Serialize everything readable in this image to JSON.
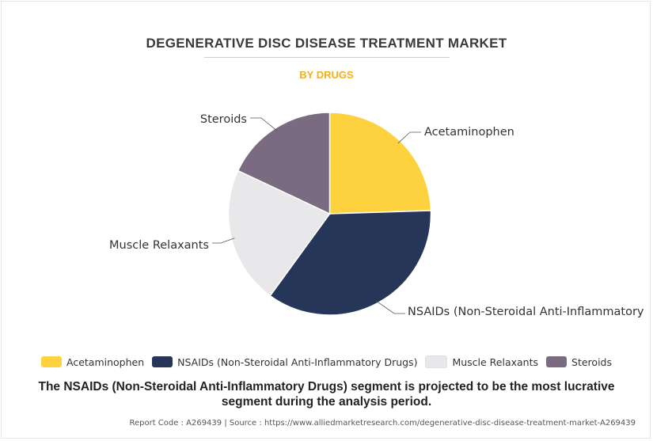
{
  "chart_data": {
    "type": "pie",
    "title": "DEGENERATIVE DISC DISEASE TREATMENT MARKET",
    "subtitle": "BY DRUGS",
    "categories": [
      "Acetaminophen",
      "NSAIDs (Non-Steroidal Anti-Inflammatory Drugs)",
      "Muscle Relaxants",
      "Steroids"
    ],
    "slice_labels": [
      "Acetaminophen",
      "NSAIDs (Non-Steroidal Anti-Inflammatory",
      "Muscle Relaxants",
      "Steroids"
    ],
    "values": [
      24.5,
      35.5,
      22,
      18
    ],
    "colors": [
      "#fdd23e",
      "#253659",
      "#e8e8ea",
      "#7a6b80"
    ],
    "legend_position": "bottom"
  },
  "caption": "The NSAIDs (Non-Steroidal Anti-Inflammatory Drugs) segment is projected to be the most lucrative segment during the analysis period.",
  "footer": "Report Code : A269439  |  Source : https://www.alliedmarketresearch.com/degenerative-disc-disease-treatment-market-A269439"
}
